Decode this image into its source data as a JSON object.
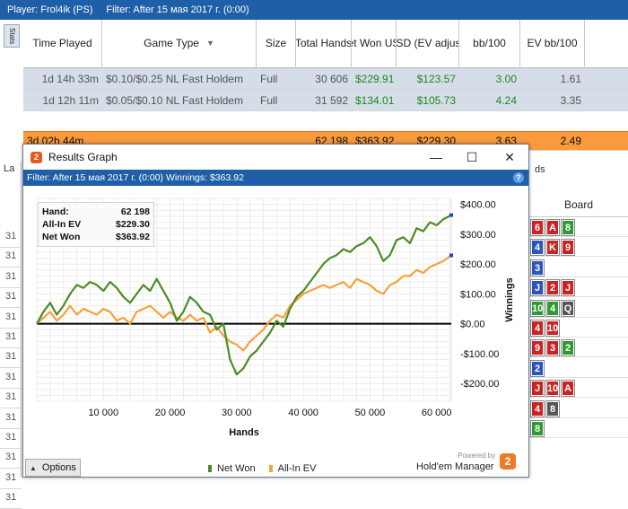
{
  "topbar": {
    "player": "Player: Frol4ik (PS)",
    "filter": "Filter: After 15 мая 2017 г. (0:00)"
  },
  "side_tab": "Stats",
  "grid": {
    "headers": [
      "Time Played",
      "Game Type",
      "Size",
      "Total Hands",
      "Net Won USD",
      "$ USD (EV adjusted",
      "bb/100",
      "EV bb/100"
    ],
    "rows": [
      [
        "1d 14h 33m",
        "$0.10/$0.25 NL Fast Holdem",
        "Full",
        "30 606",
        "$229.91",
        "$123.57",
        "3.00",
        "1.61"
      ],
      [
        "1d 12h 11m",
        "$0.05/$0.10 NL Fast Holdem",
        "Full",
        "31 592",
        "$134.01",
        "$105.73",
        "4.24",
        "3.35"
      ]
    ],
    "total": [
      "3d 02h 44m",
      "",
      "",
      "62 198",
      "$363.92",
      "$229.30",
      "3.63",
      "2.49"
    ]
  },
  "underlay": {
    "left_tab": "La",
    "left_values": [
      "31",
      "31",
      "31",
      "31",
      "31",
      "31",
      "31",
      "31",
      "31",
      "31",
      "31",
      "31",
      "31",
      "31"
    ],
    "right_tab": "ds",
    "board_title": "Board",
    "board_rows": [
      [
        "6|r",
        "A|r",
        "8|g"
      ],
      [
        "4|b",
        "K|r",
        "9|r"
      ],
      [
        "3|b"
      ],
      [
        "J|b",
        "2|r",
        "J|r"
      ],
      [
        "10|g",
        "4|g",
        "Q|k"
      ],
      [
        "4|r",
        "10|r"
      ],
      [
        "9|r",
        "3|r",
        "2|g"
      ],
      [
        "2|b"
      ],
      [
        "J|r",
        "10|r",
        "A|r"
      ],
      [
        "4|r",
        "8|k"
      ],
      [
        "8|g"
      ]
    ]
  },
  "window": {
    "title": "Results Graph",
    "filter": "Filter: After 15 мая 2017 г. (0:00)  Winnings: $363.92",
    "info": [
      {
        "label": "Hand:",
        "value": "62 198"
      },
      {
        "label": "All-In EV",
        "value": "$229.30"
      },
      {
        "label": "Net Won",
        "value": "$363.92"
      }
    ],
    "options_label": "Options",
    "powered_by": "Powered by",
    "brand": "Hold'em Manager",
    "brand_logo": "2",
    "colors": {
      "net_won": "#4c8c25",
      "allin_ev": "#f7a13c"
    }
  },
  "chart_data": {
    "type": "line",
    "xlabel": "Hands",
    "ylabel": "Winnings",
    "xlim": [
      0,
      62198
    ],
    "ylim": [
      -260,
      420
    ],
    "x_ticks": [
      10000,
      20000,
      30000,
      40000,
      50000,
      60000
    ],
    "x_tick_labels": [
      "10 000",
      "20 000",
      "30 000",
      "40 000",
      "50 000",
      "60 000"
    ],
    "y_ticks": [
      400,
      300,
      200,
      100,
      0,
      -100,
      -200
    ],
    "y_tick_labels": [
      "$400.00",
      "$300.00",
      "$200.00",
      "$100.00",
      "$0.00",
      "-$100.00",
      "-$200.00"
    ],
    "grid": true,
    "legend": "bottom-center",
    "series": [
      {
        "name": "Net Won",
        "color": "#4c8c25",
        "x": [
          0,
          1000,
          2000,
          3000,
          4000,
          5000,
          6000,
          7000,
          8000,
          9000,
          10000,
          11000,
          12000,
          13000,
          14000,
          15000,
          16000,
          17000,
          18000,
          19000,
          20000,
          21000,
          22000,
          23000,
          24000,
          25000,
          26000,
          27000,
          28000,
          29000,
          30000,
          31000,
          32000,
          33000,
          34000,
          35000,
          36000,
          37000,
          38000,
          39000,
          40000,
          41000,
          42000,
          43000,
          44000,
          45000,
          46000,
          47000,
          48000,
          49000,
          50000,
          51000,
          52000,
          53000,
          54000,
          55000,
          56000,
          57000,
          58000,
          59000,
          60000,
          61000,
          62198
        ],
        "values": [
          0,
          40,
          70,
          30,
          60,
          100,
          130,
          120,
          140,
          130,
          110,
          140,
          120,
          90,
          70,
          100,
          130,
          110,
          150,
          110,
          70,
          10,
          40,
          90,
          70,
          40,
          30,
          -20,
          0,
          -120,
          -170,
          -150,
          -110,
          -90,
          -60,
          -30,
          10,
          -10,
          50,
          90,
          110,
          140,
          170,
          200,
          220,
          230,
          250,
          240,
          260,
          270,
          290,
          260,
          210,
          230,
          280,
          290,
          270,
          320,
          310,
          340,
          330,
          350,
          364
        ]
      },
      {
        "name": "All-In EV",
        "color": "#f7a13c",
        "x": [
          0,
          1000,
          2000,
          3000,
          4000,
          5000,
          6000,
          7000,
          8000,
          9000,
          10000,
          11000,
          12000,
          13000,
          14000,
          15000,
          16000,
          17000,
          18000,
          19000,
          20000,
          21000,
          22000,
          23000,
          24000,
          25000,
          26000,
          27000,
          28000,
          29000,
          30000,
          31000,
          32000,
          33000,
          34000,
          35000,
          36000,
          37000,
          38000,
          39000,
          40000,
          41000,
          42000,
          43000,
          44000,
          45000,
          46000,
          47000,
          48000,
          49000,
          50000,
          51000,
          52000,
          53000,
          54000,
          55000,
          56000,
          57000,
          58000,
          59000,
          60000,
          61000,
          62198
        ],
        "values": [
          0,
          20,
          40,
          10,
          30,
          60,
          30,
          50,
          40,
          30,
          50,
          40,
          10,
          20,
          0,
          40,
          50,
          60,
          40,
          20,
          40,
          20,
          10,
          30,
          10,
          20,
          -30,
          -10,
          -40,
          -60,
          -70,
          -90,
          -60,
          -40,
          -20,
          10,
          30,
          20,
          60,
          80,
          100,
          110,
          120,
          130,
          120,
          130,
          140,
          120,
          150,
          140,
          130,
          110,
          100,
          130,
          140,
          160,
          160,
          180,
          170,
          190,
          200,
          210,
          229
        ]
      }
    ]
  }
}
